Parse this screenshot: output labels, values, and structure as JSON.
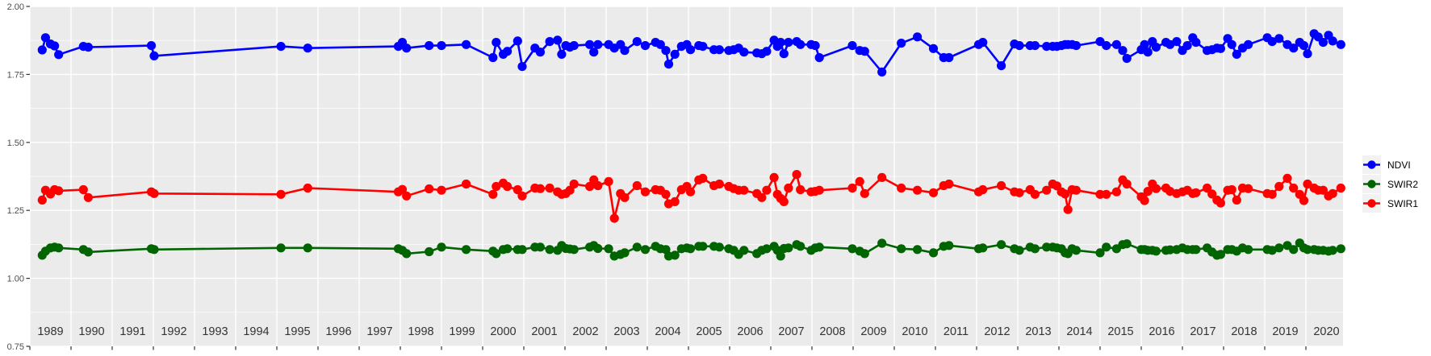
{
  "chart_data": {
    "type": "line",
    "title": "",
    "xlabel": "",
    "ylabel": "",
    "xlim": [
      1989.0,
      2020.9
    ],
    "ylim": [
      0.75,
      2.0
    ],
    "y_ticks": [
      2.0,
      1.75,
      1.5,
      1.25,
      1.0,
      0.75
    ],
    "y_tick_labels": [
      "2.00",
      "1.75",
      "1.50",
      "1.25",
      "1.00",
      "0.75"
    ],
    "y_minor_ticks": [
      1.875,
      1.625,
      1.375,
      1.125,
      0.875
    ],
    "x_tick_labels": [
      "1989",
      "1990",
      "1991",
      "1992",
      "1993",
      "1994",
      "1995",
      "1996",
      "1997",
      "1998",
      "1999",
      "2000",
      "2001",
      "2002",
      "2003",
      "2004",
      "2005",
      "2006",
      "2007",
      "2008",
      "2009",
      "2010",
      "2011",
      "2012",
      "2013",
      "2014",
      "2015",
      "2016",
      "2017",
      "2018",
      "2019",
      "2020"
    ],
    "grid": {
      "horizontal_major": true,
      "horizontal_minor": true,
      "vertical_major": true,
      "vertical_minor": false,
      "color": "#FFFFFF"
    },
    "panel_background": "#EBEBEB",
    "axis_text_color": "#4D4D4D",
    "x_axis_text_color": "#333333",
    "tick_color": "#333333",
    "legend_position": "right",
    "legend_key_background": "#F2F2F2",
    "x": [
      1989.3,
      1989.38,
      1989.5,
      1989.6,
      1989.7,
      1990.3,
      1990.42,
      1991.95,
      1992.02,
      1995.1,
      1995.75,
      1997.95,
      1998.05,
      1998.15,
      1998.7,
      1999.0,
      1999.6,
      2000.25,
      2000.33,
      2000.5,
      2000.6,
      2000.85,
      2000.96,
      2001.27,
      2001.4,
      2001.63,
      2001.82,
      2001.92,
      2002.02,
      2002.12,
      2002.22,
      2002.6,
      2002.7,
      2002.8,
      2003.06,
      2003.2,
      2003.35,
      2003.45,
      2003.75,
      2003.95,
      2004.2,
      2004.32,
      2004.45,
      2004.52,
      2004.67,
      2004.83,
      2004.96,
      2005.05,
      2005.25,
      2005.35,
      2005.62,
      2005.75,
      2005.98,
      2006.1,
      2006.22,
      2006.35,
      2006.66,
      2006.78,
      2006.9,
      2007.08,
      2007.16,
      2007.24,
      2007.32,
      2007.43,
      2007.63,
      2007.72,
      2007.98,
      2008.08,
      2008.18,
      2008.98,
      2009.16,
      2009.28,
      2009.7,
      2010.17,
      2010.56,
      2010.95,
      2011.2,
      2011.33,
      2012.05,
      2012.15,
      2012.6,
      2012.92,
      2013.04,
      2013.3,
      2013.42,
      2013.7,
      2013.85,
      2013.95,
      2014.06,
      2014.15,
      2014.22,
      2014.32,
      2014.42,
      2015.0,
      2015.15,
      2015.4,
      2015.55,
      2015.65,
      2016.0,
      2016.08,
      2016.16,
      2016.27,
      2016.36,
      2016.6,
      2016.7,
      2016.86,
      2017.0,
      2017.12,
      2017.25,
      2017.33,
      2017.6,
      2017.72,
      2017.84,
      2017.93,
      2018.1,
      2018.2,
      2018.32,
      2018.46,
      2018.6,
      2019.06,
      2019.18,
      2019.35,
      2019.55,
      2019.7,
      2019.85,
      2019.95,
      2020.04,
      2020.2,
      2020.3,
      2020.42,
      2020.55,
      2020.65,
      2020.85
    ],
    "series": [
      {
        "name": "NDVI",
        "color": "#0000FF",
        "values": [
          1.84,
          1.885,
          1.862,
          1.855,
          1.823,
          1.853,
          1.85,
          1.856,
          1.818,
          1.853,
          1.847,
          1.853,
          1.868,
          1.847,
          1.856,
          1.856,
          1.86,
          1.812,
          1.868,
          1.824,
          1.835,
          1.873,
          1.779,
          1.847,
          1.832,
          1.871,
          1.876,
          1.824,
          1.856,
          1.85,
          1.856,
          1.86,
          1.832,
          1.86,
          1.86,
          1.847,
          1.86,
          1.838,
          1.871,
          1.856,
          1.868,
          1.86,
          1.838,
          1.788,
          1.824,
          1.853,
          1.86,
          1.841,
          1.856,
          1.853,
          1.841,
          1.841,
          1.838,
          1.841,
          1.847,
          1.832,
          1.829,
          1.826,
          1.835,
          1.876,
          1.853,
          1.868,
          1.826,
          1.868,
          1.871,
          1.86,
          1.86,
          1.856,
          1.812,
          1.856,
          1.838,
          1.835,
          1.759,
          1.865,
          1.888,
          1.845,
          1.812,
          1.812,
          1.86,
          1.868,
          1.782,
          1.862,
          1.856,
          1.856,
          1.856,
          1.853,
          1.853,
          1.853,
          1.856,
          1.86,
          1.86,
          1.86,
          1.856,
          1.871,
          1.856,
          1.86,
          1.838,
          1.809,
          1.841,
          1.86,
          1.832,
          1.871,
          1.85,
          1.868,
          1.86,
          1.871,
          1.838,
          1.856,
          1.885,
          1.868,
          1.838,
          1.841,
          1.847,
          1.845,
          1.882,
          1.86,
          1.824,
          1.847,
          1.86,
          1.885,
          1.871,
          1.882,
          1.86,
          1.847,
          1.868,
          1.856,
          1.826,
          1.9,
          1.888,
          1.868,
          1.894,
          1.873,
          1.86
        ]
      },
      {
        "name": "SWIR2",
        "color": "#006400",
        "values": [
          1.085,
          1.1,
          1.112,
          1.115,
          1.112,
          1.106,
          1.097,
          1.109,
          1.106,
          1.112,
          1.112,
          1.109,
          1.103,
          1.091,
          1.098,
          1.115,
          1.106,
          1.1,
          1.091,
          1.106,
          1.109,
          1.106,
          1.106,
          1.115,
          1.115,
          1.106,
          1.103,
          1.121,
          1.11,
          1.108,
          1.106,
          1.115,
          1.121,
          1.11,
          1.109,
          1.082,
          1.088,
          1.094,
          1.115,
          1.106,
          1.118,
          1.109,
          1.106,
          1.082,
          1.085,
          1.109,
          1.112,
          1.109,
          1.118,
          1.118,
          1.118,
          1.115,
          1.109,
          1.103,
          1.088,
          1.103,
          1.091,
          1.103,
          1.109,
          1.118,
          1.103,
          1.082,
          1.11,
          1.112,
          1.124,
          1.118,
          1.103,
          1.112,
          1.115,
          1.109,
          1.1,
          1.091,
          1.129,
          1.109,
          1.106,
          1.094,
          1.118,
          1.121,
          1.109,
          1.112,
          1.124,
          1.109,
          1.103,
          1.115,
          1.109,
          1.115,
          1.115,
          1.112,
          1.109,
          1.094,
          1.091,
          1.109,
          1.103,
          1.094,
          1.115,
          1.109,
          1.124,
          1.127,
          1.106,
          1.106,
          1.103,
          1.103,
          1.1,
          1.103,
          1.105,
          1.106,
          1.112,
          1.106,
          1.106,
          1.106,
          1.112,
          1.097,
          1.085,
          1.088,
          1.106,
          1.106,
          1.1,
          1.112,
          1.106,
          1.106,
          1.103,
          1.112,
          1.121,
          1.106,
          1.13,
          1.112,
          1.106,
          1.106,
          1.103,
          1.103,
          1.1,
          1.103,
          1.109
        ]
      },
      {
        "name": "SWIR1",
        "color": "#FF0000",
        "values": [
          1.288,
          1.324,
          1.31,
          1.326,
          1.322,
          1.326,
          1.297,
          1.318,
          1.312,
          1.309,
          1.332,
          1.318,
          1.327,
          1.303,
          1.329,
          1.324,
          1.347,
          1.309,
          1.338,
          1.35,
          1.338,
          1.326,
          1.303,
          1.332,
          1.33,
          1.332,
          1.318,
          1.309,
          1.312,
          1.324,
          1.347,
          1.338,
          1.362,
          1.341,
          1.356,
          1.221,
          1.312,
          1.297,
          1.341,
          1.318,
          1.326,
          1.324,
          1.309,
          1.274,
          1.282,
          1.326,
          1.338,
          1.318,
          1.362,
          1.368,
          1.341,
          1.347,
          1.338,
          1.33,
          1.324,
          1.324,
          1.312,
          1.297,
          1.324,
          1.371,
          1.309,
          1.294,
          1.282,
          1.332,
          1.382,
          1.326,
          1.318,
          1.32,
          1.324,
          1.332,
          1.356,
          1.312,
          1.371,
          1.332,
          1.324,
          1.315,
          1.341,
          1.347,
          1.318,
          1.326,
          1.341,
          1.318,
          1.315,
          1.326,
          1.309,
          1.324,
          1.347,
          1.34,
          1.318,
          1.31,
          1.253,
          1.326,
          1.324,
          1.309,
          1.309,
          1.318,
          1.362,
          1.347,
          1.3,
          1.286,
          1.32,
          1.347,
          1.33,
          1.332,
          1.32,
          1.312,
          1.318,
          1.324,
          1.312,
          1.315,
          1.332,
          1.31,
          1.288,
          1.277,
          1.324,
          1.326,
          1.288,
          1.332,
          1.33,
          1.312,
          1.309,
          1.338,
          1.368,
          1.332,
          1.309,
          1.286,
          1.347,
          1.332,
          1.324,
          1.324,
          1.303,
          1.312,
          1.332
        ]
      }
    ]
  },
  "legend": {
    "items": [
      {
        "label": "NDVI"
      },
      {
        "label": "SWIR2"
      },
      {
        "label": "SWIR1"
      }
    ]
  }
}
